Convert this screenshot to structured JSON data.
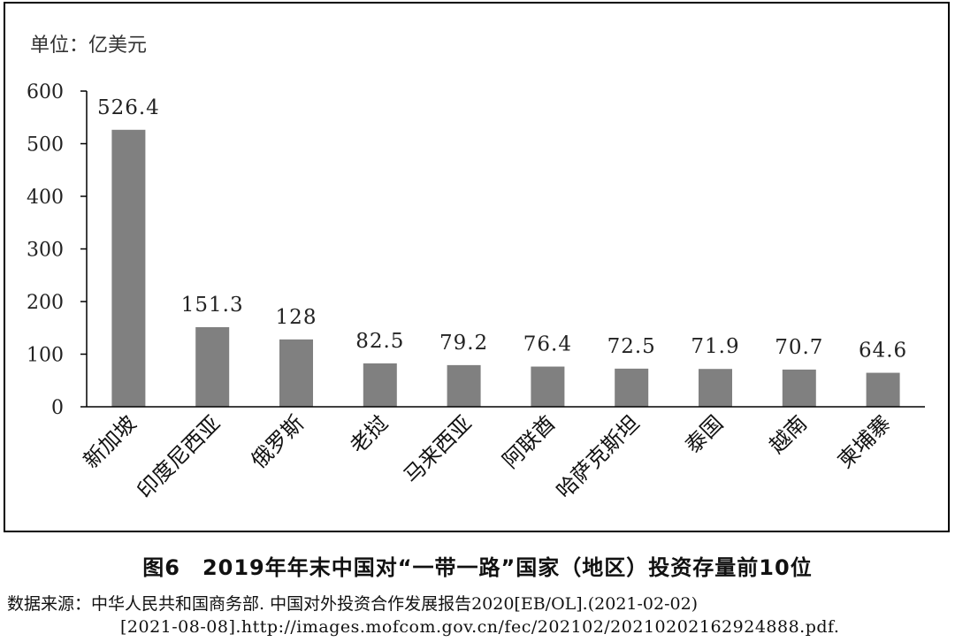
{
  "chart_data": {
    "type": "bar",
    "unit_label": "单位：亿美元",
    "categories": [
      "新加坡",
      "印度尼西亚",
      "俄罗斯",
      "老挝",
      "马来西亚",
      "阿联酋",
      "哈萨克斯坦",
      "泰国",
      "越南",
      "柬埔寨"
    ],
    "values": [
      526.4,
      151.3,
      128,
      82.5,
      79.2,
      76.4,
      72.5,
      71.9,
      70.7,
      64.6
    ],
    "data_labels": [
      "526.4",
      "151.3",
      "128",
      "82.5",
      "79.2",
      "76.4",
      "72.5",
      "71.9",
      "70.7",
      "64.6"
    ],
    "ylim": [
      0,
      600
    ],
    "yticks": [
      0,
      100,
      200,
      300,
      400,
      500,
      600
    ],
    "bar_color": "#808080",
    "grid": false,
    "legend": "none"
  },
  "caption": "图6　2019年年末中国对“一带一路”国家（地区）投资存量前10位",
  "source": {
    "line1": "数据来源：中华人民共和国商务部. 中国对外投资合作发展报告2020[EB/OL].(2021-02-02)",
    "line2": "[2021-08-08].http://images.mofcom.gov.cn/fec/202102/20210202162924888.pdf."
  }
}
